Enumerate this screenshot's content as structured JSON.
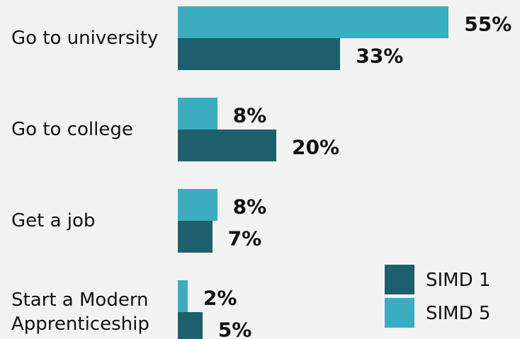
{
  "chart_data": {
    "type": "bar",
    "orientation": "horizontal",
    "categories": [
      "Go to university",
      "Go to college",
      "Get a job",
      "Start a Modern Apprenticeship"
    ],
    "series": [
      {
        "name": "SIMD 5",
        "color": "#3aadc0",
        "values": [
          55,
          8,
          8,
          2
        ],
        "value_labels": [
          "55%",
          "8%",
          "8%",
          "2%"
        ]
      },
      {
        "name": "SIMD 1",
        "color": "#1e5f6e",
        "values": [
          33,
          20,
          7,
          5
        ],
        "value_labels": [
          "33%",
          "20%",
          "7%",
          "5%"
        ]
      }
    ],
    "legend": "lower right"
  }
}
